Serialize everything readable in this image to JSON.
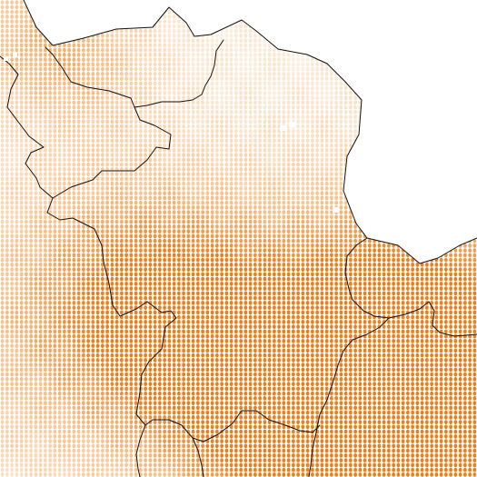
{
  "map": {
    "style": "dot-density raster over administrative boundaries",
    "background_color": "#ffffff",
    "boundary_color": "#111111",
    "color_scale": {
      "low": "#fdf3e8",
      "mid": "#f6c48f",
      "high": "#e8801e"
    },
    "regions": [
      {
        "id": "north-west-region"
      },
      {
        "id": "north-central-region"
      },
      {
        "id": "north-east-region"
      },
      {
        "id": "central-region"
      },
      {
        "id": "east-region"
      },
      {
        "id": "south-west-region"
      },
      {
        "id": "south-central-region"
      },
      {
        "id": "south-east-region"
      }
    ]
  }
}
